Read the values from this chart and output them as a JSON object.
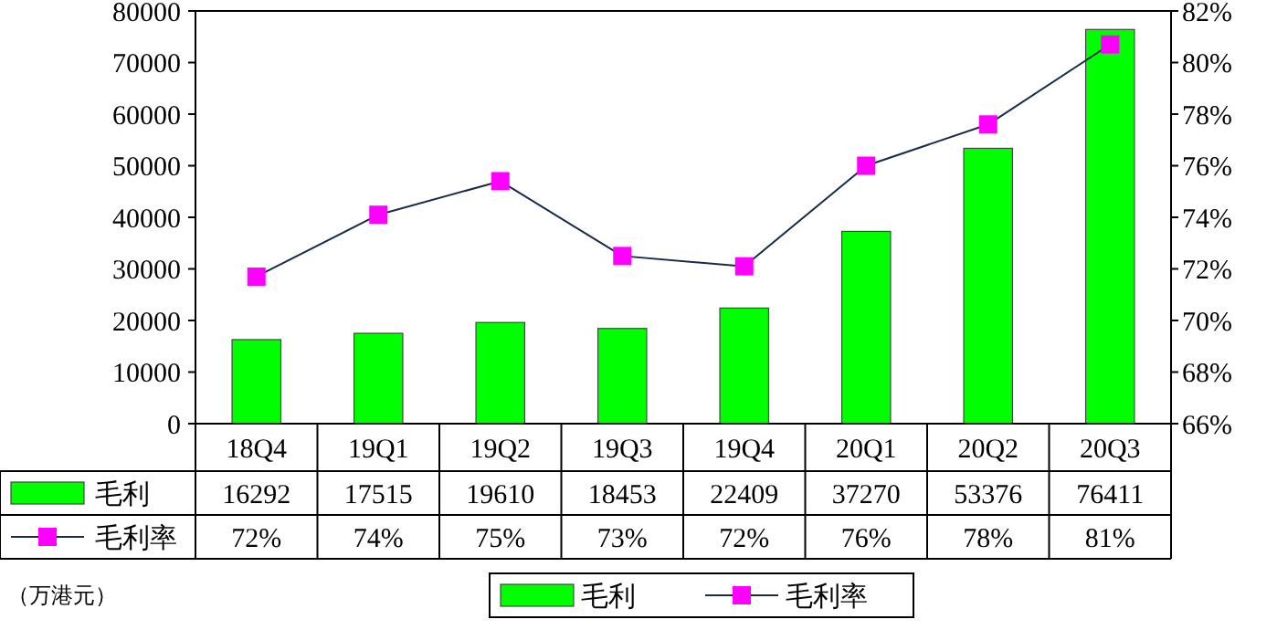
{
  "chart_data": {
    "type": "bar",
    "categories": [
      "18Q4",
      "19Q1",
      "19Q2",
      "19Q3",
      "19Q4",
      "20Q1",
      "20Q2",
      "20Q3"
    ],
    "series": [
      {
        "name": "毛利",
        "color": "#00ff00",
        "values": [
          16292,
          17515,
          19610,
          18453,
          22409,
          37270,
          53376,
          76411
        ],
        "value_labels": [
          "16292",
          "17515",
          "19610",
          "18453",
          "22409",
          "37270",
          "53376",
          "76411"
        ]
      },
      {
        "name": "毛利率",
        "type": "line",
        "axis": "y2",
        "color": "#ff00ff",
        "marker": "square",
        "values": [
          71.7,
          74.1,
          75.4,
          72.5,
          72.1,
          76.0,
          77.6,
          80.7
        ],
        "value_labels": [
          "72%",
          "74%",
          "75%",
          "73%",
          "72%",
          "76%",
          "78%",
          "81%"
        ]
      }
    ],
    "ylim": [
      0,
      80000
    ],
    "yticks": [
      0,
      10000,
      20000,
      30000,
      40000,
      50000,
      60000,
      70000,
      80000
    ],
    "y2lim": [
      66,
      82
    ],
    "y2ticks": [
      {
        "value": 66,
        "label": "66%"
      },
      {
        "value": 68,
        "label": "68%"
      },
      {
        "value": 70,
        "label": "70%"
      },
      {
        "value": 72,
        "label": "72%"
      },
      {
        "value": 74,
        "label": "74%"
      },
      {
        "value": 76,
        "label": "76%"
      },
      {
        "value": 78,
        "label": "78%"
      },
      {
        "value": 80,
        "label": "80%"
      },
      {
        "value": 82,
        "label": "82%"
      }
    ],
    "grid": false,
    "legend": "bottom",
    "annotations": [
      "（万港元）"
    ]
  }
}
